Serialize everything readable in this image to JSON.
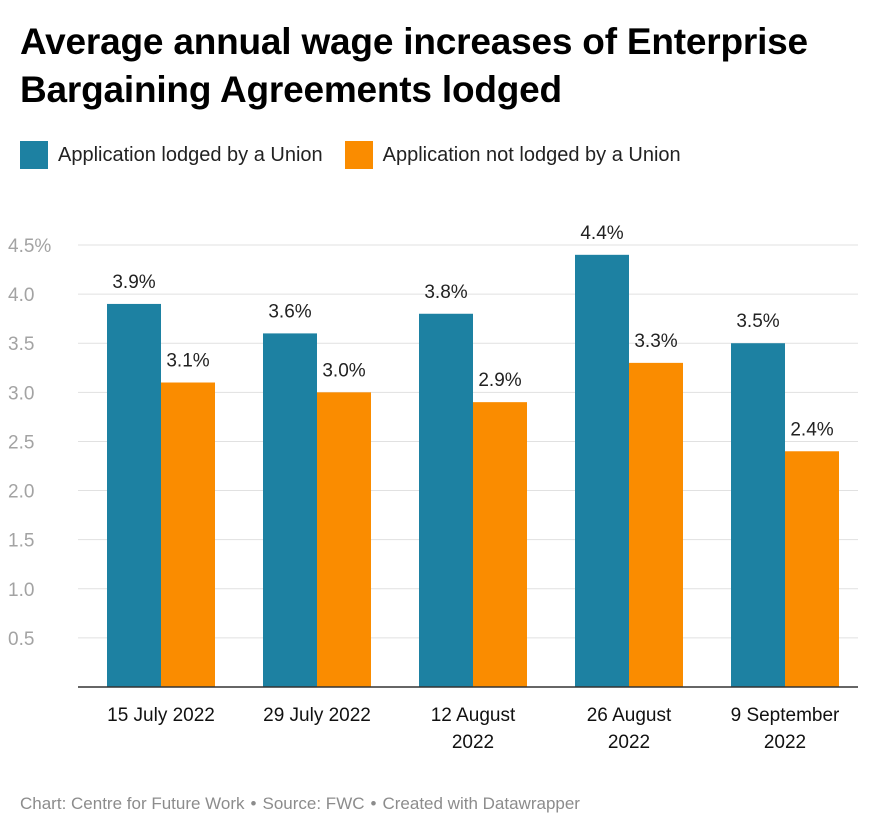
{
  "chart_data": {
    "type": "bar",
    "title": "Average annual wage increases of Enterprise Bargaining Agreements lodged",
    "categories": [
      [
        "15 July 2022"
      ],
      [
        "29 July 2022"
      ],
      [
        "12 August",
        "2022"
      ],
      [
        "26 August",
        "2022"
      ],
      [
        "9 September",
        "2022"
      ]
    ],
    "series": [
      {
        "name": "Application lodged by a Union",
        "color": "#1d81a2",
        "values": [
          3.9,
          3.6,
          3.8,
          4.4,
          3.5
        ],
        "labels": [
          "3.9%",
          "3.6%",
          "3.8%",
          "4.4%",
          "3.5%"
        ]
      },
      {
        "name": "Application not lodged by a Union",
        "color": "#fa8c00",
        "values": [
          3.1,
          3.0,
          2.9,
          3.3,
          2.4
        ],
        "labels": [
          "3.1%",
          "3.0%",
          "2.9%",
          "3.3%",
          "2.4%"
        ]
      }
    ],
    "yticks": [
      0.5,
      1.0,
      1.5,
      2.0,
      2.5,
      3.0,
      3.5,
      4.0,
      4.5
    ],
    "ytick_labels": [
      "0.5",
      "1.0",
      "1.5",
      "2.0",
      "2.5",
      "3.0",
      "3.5",
      "4.0",
      "4.5%"
    ],
    "ylim": [
      0,
      4.5
    ],
    "xlabel": "",
    "ylabel": "",
    "grid": true,
    "legend_position": "top-left"
  },
  "footer": {
    "chart": "Chart: Centre for Future Work",
    "source": "Source: FWC",
    "created": "Created with Datawrapper",
    "separator": "•"
  }
}
